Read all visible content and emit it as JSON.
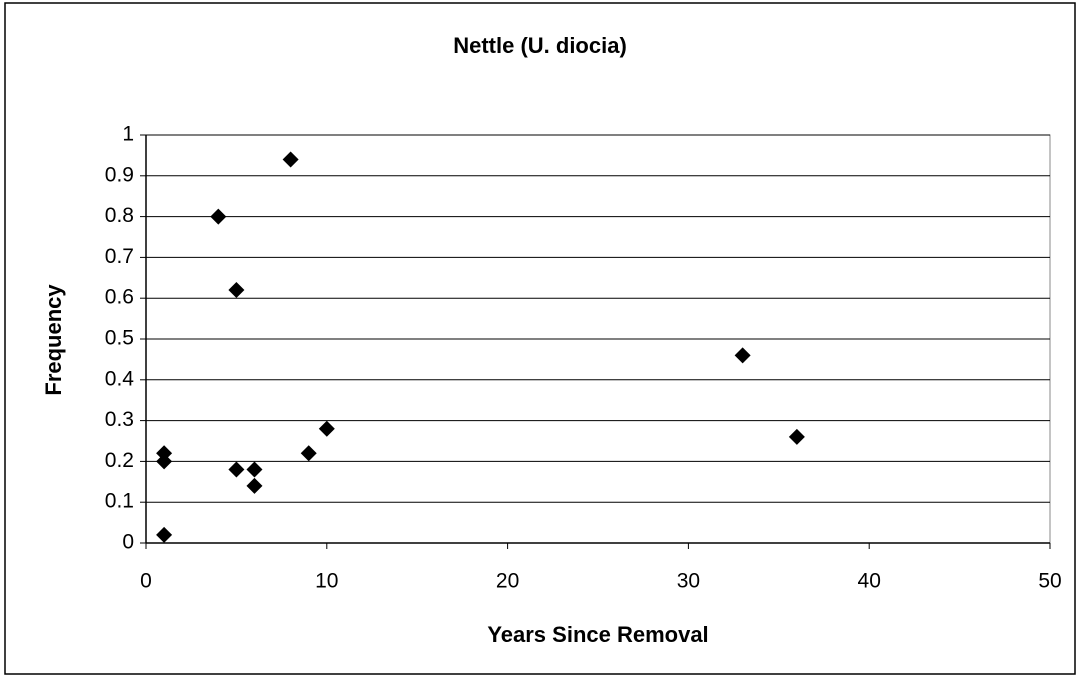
{
  "chart_data": {
    "type": "scatter",
    "title": "Nettle (U. diocia)",
    "x_label": "Years Since Removal",
    "y_label": "Frequency",
    "series": [
      {
        "color": "#000000",
        "x": [
          1,
          1,
          1,
          4,
          5,
          5,
          6,
          6,
          8,
          9,
          10,
          33,
          36
        ],
        "values": [
          0.22,
          0.2,
          0.02,
          0.8,
          0.62,
          0.18,
          0.18,
          0.14,
          0.94,
          0.22,
          0.28,
          0.46,
          0.26
        ]
      }
    ],
    "xlim": [
      0,
      50
    ],
    "xticks": [
      0,
      10,
      20,
      30,
      40,
      50
    ],
    "ylim": [
      0,
      1
    ],
    "yticks": [
      0,
      0.1,
      0.2,
      0.3,
      0.4,
      0.5,
      0.6,
      0.7,
      0.8,
      0.9,
      1
    ],
    "grid": true
  }
}
